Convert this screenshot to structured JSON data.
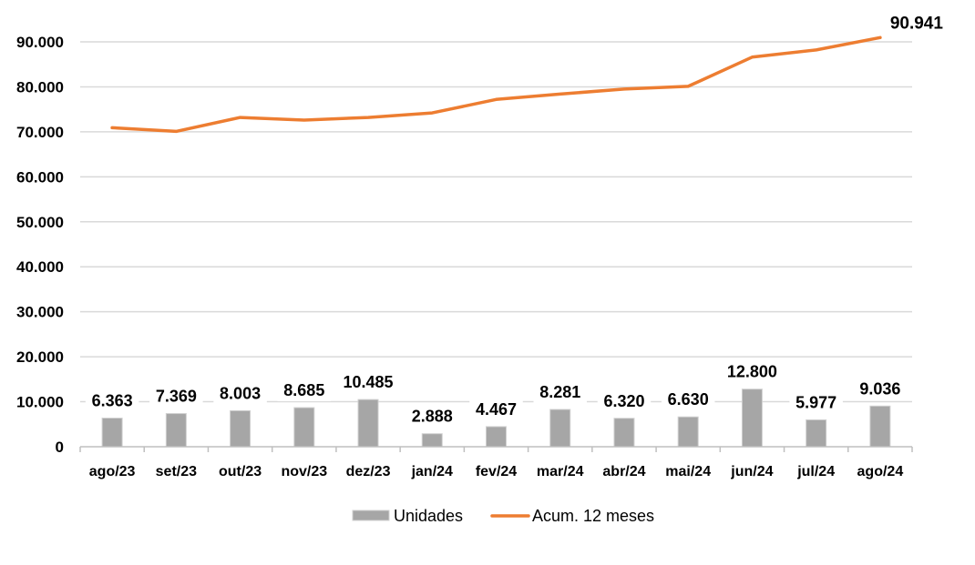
{
  "chart_data": {
    "type": "bar",
    "categories": [
      "ago/23",
      "set/23",
      "out/23",
      "nov/23",
      "dez/23",
      "jan/24",
      "fev/24",
      "mar/24",
      "abr/24",
      "mai/24",
      "jun/24",
      "jul/24",
      "ago/24"
    ],
    "series": [
      {
        "name": "Unidades",
        "type": "bar",
        "color": "#a6a6a6",
        "values": [
          6363,
          7369,
          8003,
          8685,
          10485,
          2888,
          4467,
          8281,
          6320,
          6630,
          12800,
          5977,
          9036
        ],
        "labels": [
          "6.363",
          "7.369",
          "8.003",
          "8.685",
          "10.485",
          "2.888",
          "4.467",
          "8.281",
          "6.320",
          "6.630",
          "12.800",
          "5.977",
          "9.036"
        ]
      },
      {
        "name": "Acum. 12 meses",
        "type": "line",
        "color": "#ed7d31",
        "values": [
          70900,
          70100,
          73200,
          72600,
          73200,
          74200,
          77200,
          78400,
          79500,
          80100,
          86600,
          88200,
          90941
        ],
        "last_label": "90.941"
      }
    ],
    "ylim": [
      0,
      90000
    ],
    "yticks": [
      0,
      10000,
      20000,
      30000,
      40000,
      50000,
      60000,
      70000,
      80000,
      90000
    ],
    "ytick_labels": [
      "0",
      "10.000",
      "20.000",
      "30.000",
      "40.000",
      "50.000",
      "60.000",
      "70.000",
      "80.000",
      "90.000"
    ],
    "grid": true,
    "legend_position": "bottom"
  }
}
